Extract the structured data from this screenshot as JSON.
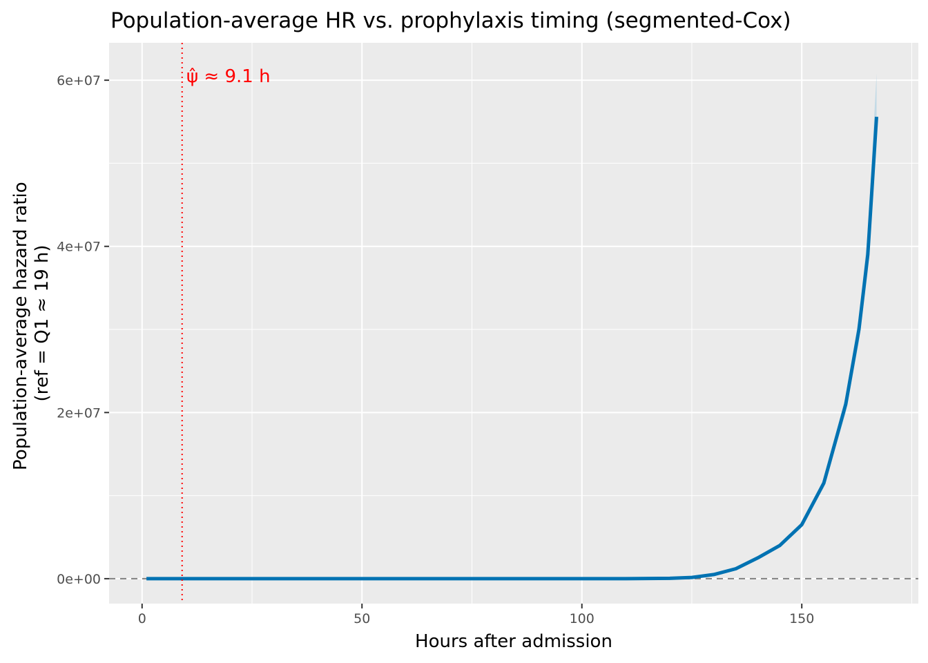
{
  "chart_data": {
    "type": "line",
    "title": "Population-average HR vs. prophylaxis timing (segmented-Cox)",
    "xlabel": "Hours after admission",
    "ylabel": [
      "Population-average hazard ratio",
      "(ref = Q1 ≈ 19 h)"
    ],
    "xlim": [
      -7.5,
      176.5
    ],
    "ylim": [
      -3000000,
      64500000
    ],
    "x_ticks": [
      0,
      50,
      100,
      150
    ],
    "x_tick_labels": [
      "0",
      "50",
      "100",
      "150"
    ],
    "y_ticks": [
      0,
      20000000,
      40000000,
      60000000
    ],
    "y_tick_labels": [
      "0e+00",
      "2e+07",
      "4e+07",
      "6e+07"
    ],
    "grid": true,
    "reference_line": {
      "y": 1,
      "style": "dashed",
      "color": "#808080"
    },
    "breakpoint": {
      "x": 9.1,
      "style": "dotted",
      "color": "#ff0000",
      "label": "ψ̂ ≈ 9.1 h"
    },
    "series": [
      {
        "color": "#0072b2",
        "band_color": "#a6cee3",
        "x": [
          1,
          9.1,
          20,
          40,
          60,
          80,
          100,
          110,
          120,
          125,
          130,
          135,
          140,
          145,
          150,
          155,
          160,
          163,
          165,
          167
        ],
        "y": [
          1,
          1,
          1,
          1,
          1,
          1,
          1,
          2000,
          40000,
          150000,
          500000,
          1200000,
          2500000,
          4000000,
          6500000,
          11500000,
          21000000,
          30000000,
          39000000,
          55600000
        ],
        "y_lower": [
          1,
          1,
          1,
          1,
          1,
          1,
          1,
          1800,
          36000,
          140000,
          470000,
          1130000,
          2350000,
          3800000,
          6200000,
          11000000,
          20000000,
          28500000,
          37000000,
          52500000
        ],
        "y_upper": [
          1,
          1,
          1,
          1,
          1,
          1,
          1,
          2200,
          44000,
          160000,
          530000,
          1270000,
          2650000,
          4200000,
          6800000,
          12000000,
          22000000,
          31500000,
          41500000,
          60800000
        ]
      }
    ]
  }
}
